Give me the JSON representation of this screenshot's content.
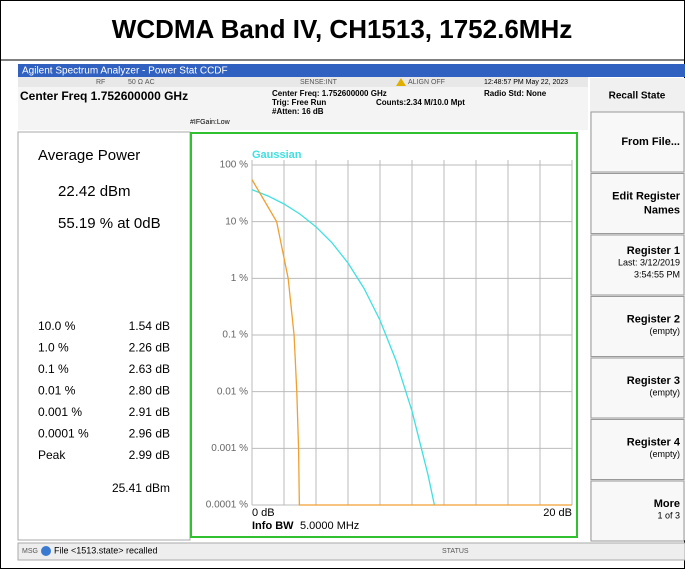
{
  "title": "WCDMA Band IV, CH1513, 1752.6MHz",
  "app_bar": {
    "title": "Agilent Spectrum Analyzer - Power Stat CCDF"
  },
  "status_bar": {
    "rf": "RF",
    "impedance": "50 Ω  AC",
    "sense": "SENSE:INT",
    "align": "ALIGN OFF",
    "datetime": "12:48:57 PM May 22, 2023"
  },
  "settings": {
    "center_freq": "Center Freq 1.752600000 GHz",
    "center_freq_detail": "Center Freq: 1.752600000 GHz",
    "trig": "Trig: Free Run",
    "counts": "Counts:2.34 M/10.0 Mpt",
    "radio_std": "Radio Std: None",
    "if_gain": "#IFGain:Low",
    "atten": "#Atten: 16 dB"
  },
  "results": {
    "heading": "Average Power",
    "average": "22.42 dBm",
    "at_0db": "55.19 % at 0dB",
    "rows": [
      [
        "10.0 %",
        "1.54 dB"
      ],
      [
        "1.0 %",
        "2.26 dB"
      ],
      [
        "0.1 %",
        "2.63 dB"
      ],
      [
        "0.01 %",
        "2.80 dB"
      ],
      [
        "0.001 %",
        "2.91 dB"
      ],
      [
        "0.0001 %",
        "2.96 dB"
      ],
      [
        "Peak",
        "2.99 dB"
      ]
    ],
    "peak_dbm": "25.41 dBm"
  },
  "chart_data": {
    "type": "line",
    "log_y": true,
    "grid": true,
    "xlim": [
      0,
      20
    ],
    "ylim": [
      0.0001,
      100
    ],
    "yticks": [
      {
        "value": 100,
        "label": "100 %"
      },
      {
        "value": 10,
        "label": "10 %"
      },
      {
        "value": 1,
        "label": "1 %"
      },
      {
        "value": 0.1,
        "label": "0.1 %"
      },
      {
        "value": 0.01,
        "label": "0.01 %"
      },
      {
        "value": 0.001,
        "label": "0.001 %"
      },
      {
        "value": 0.0001,
        "label": "0.0001 %"
      }
    ],
    "xticks": [
      {
        "value": 0,
        "label": "0 dB"
      },
      {
        "value": 2,
        "label": null
      },
      {
        "value": 4,
        "label": null
      },
      {
        "value": 6,
        "label": null
      },
      {
        "value": 8,
        "label": null
      },
      {
        "value": 10,
        "label": null
      },
      {
        "value": 12,
        "label": null
      },
      {
        "value": 14,
        "label": null
      },
      {
        "value": 16,
        "label": null
      },
      {
        "value": 18,
        "label": null
      },
      {
        "value": 20,
        "label": "20 dB"
      }
    ],
    "series": [
      {
        "name": "Gaussian",
        "color": "#40e0e0",
        "x": [
          0,
          1,
          2,
          3,
          4,
          5,
          6,
          7,
          8,
          9,
          10,
          11,
          11.4
        ],
        "values": [
          36.79,
          28.4,
          20.5,
          13.6,
          8.11,
          4.23,
          1.866,
          0.665,
          0.182,
          0.0355,
          0.00454,
          0.000341,
          0.0001
        ]
      },
      {
        "color": "#f0a030",
        "x": [
          0,
          1.54,
          2.26,
          2.63,
          2.8,
          2.91,
          2.96,
          20
        ],
        "values": [
          55.19,
          10,
          1,
          0.1,
          0.01,
          0.001,
          0.0001,
          0.0001
        ]
      }
    ],
    "info_bw_label": "Info BW",
    "info_bw": "5.0000 MHz"
  },
  "softkeys": {
    "title": "Recall State",
    "keys": [
      {
        "lines": [
          "From File..."
        ],
        "sub": []
      },
      {
        "lines": [
          "Edit Register",
          "Names"
        ],
        "sub": []
      },
      {
        "lines": [
          "Register 1"
        ],
        "sub": [
          "Last: 3/12/2019",
          "3:54:55 PM"
        ]
      },
      {
        "lines": [
          "Register 2"
        ],
        "sub": [
          "(empty)"
        ]
      },
      {
        "lines": [
          "Register 3"
        ],
        "sub": [
          "(empty)"
        ]
      },
      {
        "lines": [
          "Register 4"
        ],
        "sub": [
          "(empty)"
        ]
      },
      {
        "lines": [
          "More"
        ],
        "sub": [
          "1 of 3"
        ]
      }
    ]
  },
  "message_bar": {
    "msg": "MSG",
    "text": "File <1513.state> recalled",
    "status": "STATUS"
  }
}
